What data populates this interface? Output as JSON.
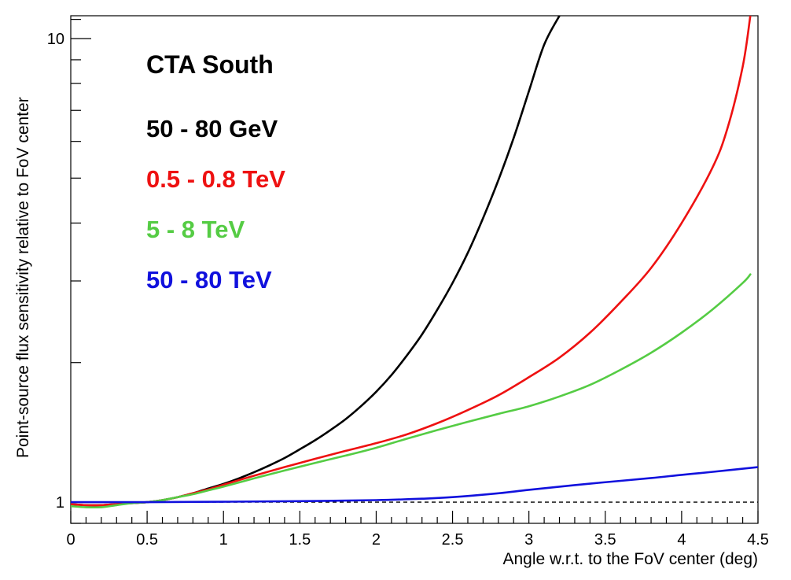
{
  "chart_data": {
    "type": "line",
    "title": "CTA South",
    "xlabel": "Angle w.r.t. to the FoV center (deg)",
    "ylabel": "Point-source flux sensitivity relative to FoV center",
    "xlim": [
      0,
      4.5
    ],
    "ylim": [
      0.9,
      11.2
    ],
    "yscale": "log",
    "grid": false,
    "legend_position": "top-left",
    "x_ticks": [
      "0",
      "0.5",
      "1",
      "1.5",
      "2",
      "2.5",
      "3",
      "3.5",
      "4",
      "4.5"
    ],
    "y_ticks": [
      "1",
      "10"
    ],
    "reference_line": {
      "y": 1,
      "style": "dashed",
      "color": "#000000"
    },
    "series": [
      {
        "name": "50 - 80 GeV",
        "color": "#000000",
        "x": [
          0,
          0.1,
          0.2,
          0.3,
          0.4,
          0.5,
          0.6,
          0.7,
          0.8,
          0.9,
          1.0,
          1.1,
          1.2,
          1.3,
          1.4,
          1.5,
          1.6,
          1.7,
          1.8,
          1.9,
          2.0,
          2.1,
          2.2,
          2.3,
          2.4,
          2.5,
          2.6,
          2.7,
          2.8,
          2.9,
          3.0,
          3.1,
          3.2
        ],
        "y": [
          0.99,
          0.985,
          0.985,
          0.99,
          0.995,
          1.0,
          1.01,
          1.025,
          1.045,
          1.07,
          1.095,
          1.125,
          1.16,
          1.2,
          1.245,
          1.3,
          1.36,
          1.43,
          1.51,
          1.61,
          1.73,
          1.88,
          2.07,
          2.3,
          2.6,
          2.97,
          3.45,
          4.1,
          4.95,
          6.1,
          7.7,
          9.7,
          11.2
        ]
      },
      {
        "name": "0.5 - 0.8 TeV",
        "color": "#ee1111",
        "x": [
          0,
          0.1,
          0.2,
          0.3,
          0.4,
          0.5,
          0.6,
          0.7,
          0.8,
          0.9,
          1.0,
          1.2,
          1.4,
          1.6,
          1.8,
          2.0,
          2.2,
          2.4,
          2.6,
          2.8,
          3.0,
          3.2,
          3.4,
          3.6,
          3.8,
          4.0,
          4.2,
          4.3,
          4.4,
          4.45
        ],
        "y": [
          0.99,
          0.985,
          0.985,
          0.99,
          0.995,
          1.0,
          1.01,
          1.025,
          1.045,
          1.065,
          1.09,
          1.14,
          1.19,
          1.24,
          1.29,
          1.34,
          1.4,
          1.48,
          1.58,
          1.7,
          1.86,
          2.05,
          2.32,
          2.7,
          3.2,
          4.0,
          5.25,
          6.4,
          8.7,
          11.2
        ]
      },
      {
        "name": "5 - 8 TeV",
        "color": "#55cc44",
        "x": [
          0,
          0.1,
          0.2,
          0.3,
          0.4,
          0.5,
          0.6,
          0.7,
          0.8,
          0.9,
          1.0,
          1.2,
          1.4,
          1.6,
          1.8,
          2.0,
          2.2,
          2.4,
          2.6,
          2.8,
          3.0,
          3.2,
          3.4,
          3.6,
          3.8,
          4.0,
          4.2,
          4.4,
          4.45
        ],
        "y": [
          0.98,
          0.975,
          0.975,
          0.985,
          0.995,
          1.0,
          1.01,
          1.025,
          1.04,
          1.06,
          1.08,
          1.125,
          1.17,
          1.215,
          1.26,
          1.31,
          1.37,
          1.43,
          1.49,
          1.55,
          1.61,
          1.69,
          1.79,
          1.93,
          2.1,
          2.32,
          2.6,
          2.97,
          3.1
        ]
      },
      {
        "name": "50 - 80 TeV",
        "color": "#1111dd",
        "x": [
          0,
          0.5,
          1.0,
          1.5,
          2.0,
          2.3,
          2.5,
          2.8,
          3.0,
          3.3,
          3.5,
          3.8,
          4.0,
          4.2,
          4.5
        ],
        "y": [
          1.0,
          1.0,
          1.002,
          1.005,
          1.01,
          1.017,
          1.025,
          1.045,
          1.063,
          1.088,
          1.104,
          1.127,
          1.145,
          1.162,
          1.19
        ]
      }
    ]
  }
}
